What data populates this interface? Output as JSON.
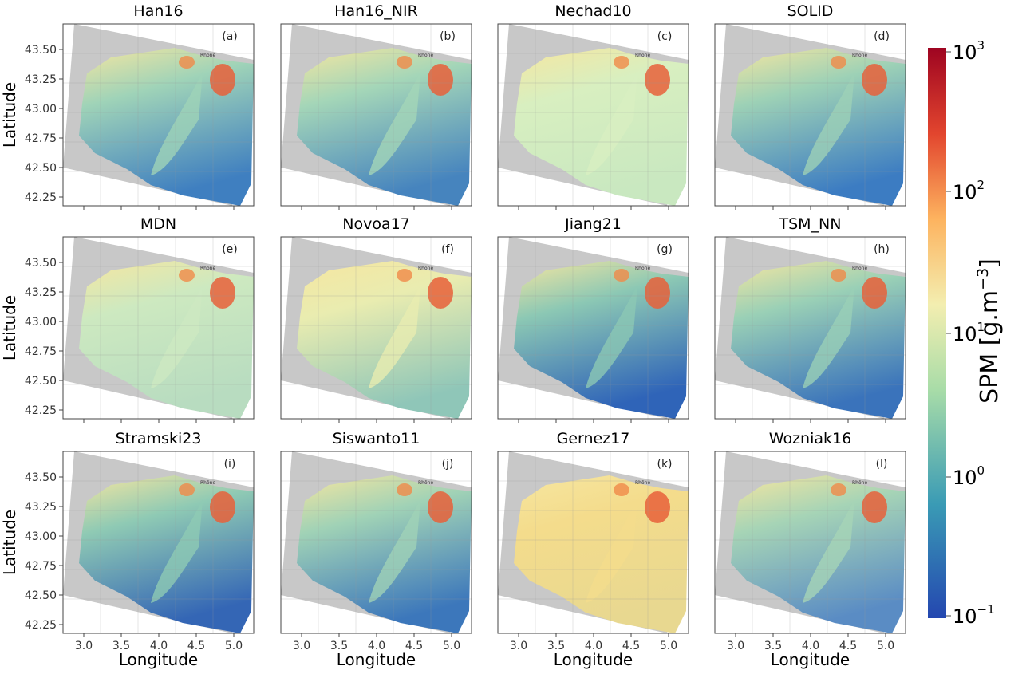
{
  "panels": [
    {
      "title": "Han16",
      "label": "(a)"
    },
    {
      "title": "Han16_NIR",
      "label": "(b)"
    },
    {
      "title": "Nechad10",
      "label": "(c)"
    },
    {
      "title": "SOLID",
      "label": "(d)"
    },
    {
      "title": "MDN",
      "label": "(e)"
    },
    {
      "title": "Novoa17",
      "label": "(f)"
    },
    {
      "title": "Jiang21",
      "label": "(g)"
    },
    {
      "title": "TSM_NN",
      "label": "(h)"
    },
    {
      "title": "Stramski23",
      "label": "(i)"
    },
    {
      "title": "Siswanto11",
      "label": "(j)"
    },
    {
      "title": "Gernez17",
      "label": "(k)"
    },
    {
      "title": "Wozniak16",
      "label": "(l)"
    }
  ],
  "annotation": "Rhône",
  "y_axis": {
    "label": "Latitude",
    "ticks": [
      "43.50",
      "43.25",
      "43.00",
      "42.75",
      "42.50",
      "42.25"
    ]
  },
  "x_axis": {
    "label": "Longitude",
    "ticks": [
      "3.0",
      "3.5",
      "4.0",
      "4.5",
      "5.0"
    ]
  },
  "colorbar": {
    "label_text": "SPM [g.m",
    "label_exp": "−3",
    "label_end": "]",
    "ticks": [
      {
        "base": "10",
        "exp": "3"
      },
      {
        "base": "10",
        "exp": "2"
      },
      {
        "base": "10",
        "exp": "1"
      },
      {
        "base": "10",
        "exp": "0"
      },
      {
        "base": "10",
        "exp": "−1"
      }
    ]
  }
}
